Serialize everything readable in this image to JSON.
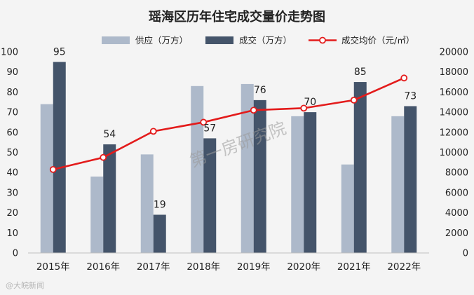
{
  "chart_data": {
    "type": "bar",
    "title": "瑶海区历年住宅成交量价走势图",
    "categories": [
      "2015年",
      "2016年",
      "2017年",
      "2018年",
      "2019年",
      "2020年",
      "2021年",
      "2022年"
    ],
    "series": [
      {
        "name": "供应（万方）",
        "type": "bar",
        "axis": "left",
        "color": "#adb9ca",
        "values": [
          74,
          38,
          49,
          83,
          84,
          68,
          44,
          68
        ]
      },
      {
        "name": "成交（万方）",
        "type": "bar",
        "axis": "left",
        "color": "#44546a",
        "values": [
          95,
          54,
          19,
          57,
          76,
          70,
          85,
          73
        ],
        "data_labels": [
          "95",
          "54",
          "19",
          "57",
          "76",
          "70",
          "85",
          "73"
        ]
      },
      {
        "name": "成交均价（元/㎡）",
        "type": "line",
        "axis": "right",
        "color": "#e31b1b",
        "values": [
          8300,
          9500,
          12100,
          13000,
          14200,
          14400,
          15200,
          17400
        ]
      }
    ],
    "y_left": {
      "min": 0,
      "max": 100,
      "step": 10,
      "ticks": [
        "0",
        "10",
        "20",
        "30",
        "40",
        "50",
        "60",
        "70",
        "80",
        "90",
        "100"
      ]
    },
    "y_right": {
      "min": 0,
      "max": 20000,
      "step": 2000,
      "ticks": [
        "0",
        "2000",
        "4000",
        "6000",
        "8000",
        "10000",
        "12000",
        "14000",
        "16000",
        "18000",
        "20000"
      ]
    },
    "grid": false,
    "legend_position": "top"
  },
  "watermark": "第一房研究院",
  "source_mark": "@大皖新闻"
}
